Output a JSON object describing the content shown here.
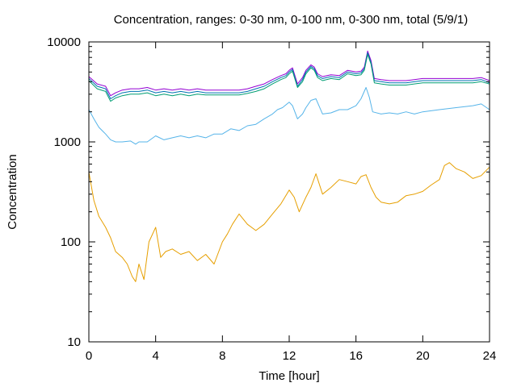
{
  "chart_data": {
    "type": "line",
    "title": "Concentration, ranges: 0-30 nm, 0-100 nm, 0-300 nm, total (5/9/1)",
    "xlabel": "Time [hour]",
    "ylabel": "Concentration",
    "xlim": [
      0,
      24
    ],
    "ylim": [
      10,
      10000
    ],
    "yscale": "log",
    "grid": false,
    "legend": "none",
    "xticks": [
      0,
      4,
      8,
      12,
      16,
      20,
      24
    ],
    "xtick_labels": [
      "0",
      "4",
      "8",
      "12",
      "16",
      "20",
      "24"
    ],
    "yticks": [
      10,
      100,
      1000,
      10000
    ],
    "ytick_labels": [
      "10",
      "100",
      "1000",
      "10000"
    ],
    "series": [
      {
        "color": "#9400d3",
        "x": [
          0,
          0.5,
          1.0,
          1.3,
          1.6,
          2.0,
          2.5,
          3.0,
          3.5,
          4.0,
          4.5,
          5.0,
          5.5,
          6.0,
          6.5,
          7.0,
          7.5,
          8.0,
          8.5,
          9.0,
          9.5,
          10.0,
          10.5,
          11.0,
          11.5,
          11.8,
          12.0,
          12.2,
          12.5,
          12.8,
          13.0,
          13.3,
          13.5,
          13.7,
          14.0,
          14.5,
          15.0,
          15.5,
          16.0,
          16.3,
          16.5,
          16.7,
          16.9,
          17.1,
          17.5,
          18.0,
          19.0,
          20.0,
          21.0,
          22.0,
          23.0,
          23.5,
          24.0
        ],
        "y": [
          4500,
          3800,
          3600,
          2900,
          3100,
          3300,
          3400,
          3400,
          3500,
          3300,
          3400,
          3300,
          3400,
          3300,
          3400,
          3300,
          3300,
          3300,
          3300,
          3300,
          3400,
          3600,
          3800,
          4200,
          4600,
          4800,
          5200,
          5500,
          3800,
          4400,
          5200,
          5900,
          5600,
          4800,
          4500,
          4700,
          4600,
          5200,
          5000,
          5100,
          5600,
          8100,
          6500,
          4300,
          4200,
          4100,
          4100,
          4300,
          4300,
          4300,
          4300,
          4400,
          4100
        ]
      },
      {
        "color": "#0072b2",
        "x": [
          0,
          0.5,
          1.0,
          1.3,
          1.6,
          2.0,
          2.5,
          3.0,
          3.5,
          4.0,
          4.5,
          5.0,
          5.5,
          6.0,
          6.5,
          7.0,
          7.5,
          8.0,
          8.5,
          9.0,
          9.5,
          10.0,
          10.5,
          11.0,
          11.5,
          11.8,
          12.0,
          12.2,
          12.5,
          12.8,
          13.0,
          13.3,
          13.5,
          13.7,
          14.0,
          14.5,
          15.0,
          15.5,
          16.0,
          16.3,
          16.5,
          16.7,
          16.9,
          17.1,
          17.5,
          18.0,
          19.0,
          20.0,
          21.0,
          22.0,
          23.0,
          23.5,
          24.0
        ],
        "y": [
          4300,
          3600,
          3400,
          2700,
          2900,
          3100,
          3200,
          3200,
          3300,
          3100,
          3200,
          3100,
          3200,
          3100,
          3200,
          3100,
          3100,
          3100,
          3100,
          3100,
          3200,
          3400,
          3600,
          4000,
          4400,
          4600,
          5000,
          5300,
          3600,
          4200,
          5000,
          5700,
          5400,
          4600,
          4300,
          4500,
          4400,
          5000,
          4800,
          4900,
          5400,
          7800,
          6200,
          4100,
          4000,
          3900,
          3900,
          4100,
          4100,
          4100,
          4100,
          4200,
          3900
        ]
      },
      {
        "color": "#009e73",
        "x": [
          0,
          0.5,
          1.0,
          1.3,
          1.6,
          2.0,
          2.5,
          3.0,
          3.5,
          4.0,
          4.5,
          5.0,
          5.5,
          6.0,
          6.5,
          7.0,
          7.5,
          8.0,
          8.5,
          9.0,
          9.5,
          10.0,
          10.5,
          11.0,
          11.5,
          11.8,
          12.0,
          12.2,
          12.5,
          12.8,
          13.0,
          13.3,
          13.5,
          13.7,
          14.0,
          14.5,
          15.0,
          15.5,
          16.0,
          16.3,
          16.5,
          16.7,
          16.9,
          17.1,
          17.5,
          18.0,
          19.0,
          20.0,
          21.0,
          22.0,
          23.0,
          23.5,
          24.0
        ],
        "y": [
          4100,
          3400,
          3200,
          2550,
          2750,
          2900,
          3000,
          3000,
          3100,
          2900,
          3000,
          2900,
          3000,
          2900,
          3000,
          2950,
          2950,
          2950,
          2950,
          2950,
          3050,
          3200,
          3400,
          3800,
          4200,
          4400,
          4800,
          5100,
          3500,
          4000,
          4800,
          5500,
          5200,
          4400,
          4100,
          4300,
          4200,
          4800,
          4600,
          4700,
          5200,
          7500,
          6000,
          3900,
          3800,
          3700,
          3700,
          3900,
          3900,
          3900,
          3900,
          4000,
          3800
        ]
      },
      {
        "color": "#56b4e9",
        "x": [
          0,
          0.3,
          0.6,
          1.0,
          1.3,
          1.6,
          2.0,
          2.5,
          2.8,
          3.0,
          3.5,
          4.0,
          4.5,
          5.0,
          5.5,
          6.0,
          6.5,
          7.0,
          7.5,
          8.0,
          8.5,
          9.0,
          9.5,
          10.0,
          10.5,
          11.0,
          11.3,
          11.6,
          12.0,
          12.2,
          12.5,
          12.8,
          13.0,
          13.3,
          13.6,
          14.0,
          14.5,
          15.0,
          15.5,
          16.0,
          16.3,
          16.6,
          16.8,
          17.0,
          17.5,
          18.0,
          18.5,
          19.0,
          19.5,
          20.0,
          21.0,
          22.0,
          23.0,
          23.5,
          24.0
        ],
        "y": [
          2100,
          1700,
          1400,
          1200,
          1050,
          1000,
          1000,
          1020,
          950,
          1000,
          1000,
          1150,
          1050,
          1100,
          1150,
          1100,
          1150,
          1100,
          1200,
          1200,
          1350,
          1300,
          1450,
          1500,
          1700,
          1900,
          2100,
          2200,
          2500,
          2300,
          1700,
          1900,
          2200,
          2600,
          2700,
          1900,
          1950,
          2100,
          2100,
          2300,
          2700,
          3500,
          2800,
          2000,
          1900,
          1950,
          1900,
          2000,
          1900,
          2000,
          2100,
          2200,
          2300,
          2400,
          2100
        ]
      },
      {
        "color": "#e69f00",
        "x": [
          0,
          0.3,
          0.6,
          1.0,
          1.3,
          1.6,
          2.0,
          2.3,
          2.6,
          2.8,
          3.0,
          3.3,
          3.6,
          4.0,
          4.3,
          4.6,
          5.0,
          5.5,
          6.0,
          6.5,
          7.0,
          7.5,
          8.0,
          8.3,
          8.6,
          9.0,
          9.5,
          10.0,
          10.5,
          11.0,
          11.5,
          12.0,
          12.3,
          12.6,
          13.0,
          13.3,
          13.6,
          14.0,
          14.5,
          15.0,
          15.5,
          16.0,
          16.3,
          16.6,
          16.9,
          17.2,
          17.5,
          18.0,
          18.5,
          19.0,
          19.5,
          20.0,
          20.5,
          21.0,
          21.3,
          21.6,
          22.0,
          22.5,
          23.0,
          23.5,
          24.0
        ],
        "y": [
          500,
          260,
          180,
          140,
          110,
          80,
          70,
          60,
          45,
          40,
          60,
          42,
          100,
          140,
          70,
          80,
          85,
          75,
          80,
          65,
          75,
          60,
          100,
          120,
          150,
          190,
          150,
          130,
          150,
          190,
          240,
          330,
          280,
          200,
          280,
          350,
          480,
          300,
          350,
          420,
          400,
          380,
          450,
          470,
          350,
          280,
          250,
          240,
          250,
          290,
          300,
          320,
          370,
          420,
          580,
          620,
          540,
          500,
          430,
          460,
          560
        ]
      }
    ]
  }
}
